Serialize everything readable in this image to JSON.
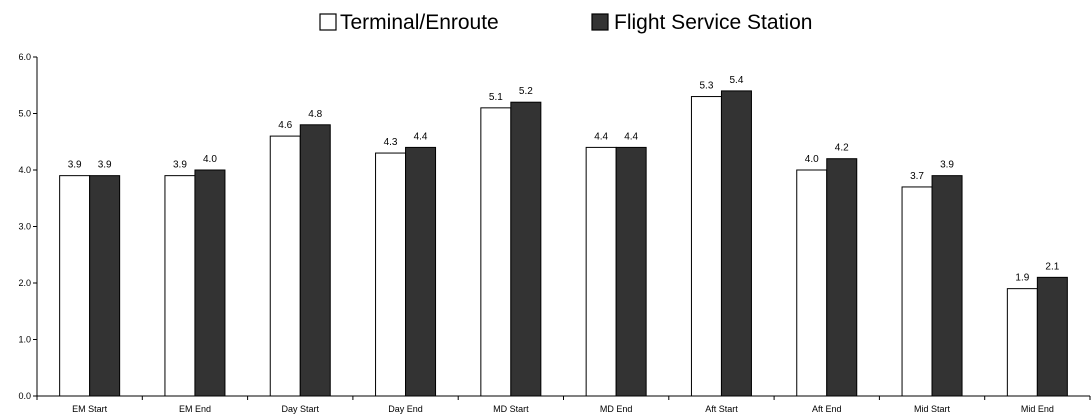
{
  "chart_data": {
    "type": "bar",
    "categories": [
      "EM Start",
      "EM End",
      "Day Start",
      "Day End",
      "MD Start",
      "MD End",
      "Aft Start",
      "Aft End",
      "Mid Start",
      "Mid End"
    ],
    "series": [
      {
        "name": "Terminal/Enroute",
        "values": [
          3.9,
          3.9,
          4.6,
          4.3,
          5.1,
          4.4,
          5.3,
          4.0,
          3.7,
          1.9
        ],
        "labels": [
          "3.9",
          "3.9",
          "4.6",
          "4.3",
          "5.1",
          "4.4",
          "5.3",
          "4.0",
          "3.7",
          "1.9"
        ],
        "color": "#ffffff"
      },
      {
        "name": "Flight Service Station",
        "values": [
          3.9,
          4.0,
          4.8,
          4.4,
          5.2,
          4.4,
          5.4,
          4.2,
          3.9,
          2.1
        ],
        "labels": [
          "3.9",
          "4.0",
          "4.8",
          "4.4",
          "5.2",
          "4.4",
          "5.4",
          "4.2",
          "3.9",
          "2.1"
        ],
        "color": "#333333"
      }
    ],
    "ylim": [
      0,
      6
    ],
    "yticks": [
      "0.0",
      "1.0",
      "2.0",
      "3.0",
      "4.0",
      "5.0",
      "6.0"
    ],
    "legend_position": "top-center",
    "grid": false,
    "title": "",
    "xlabel": "",
    "ylabel": ""
  }
}
